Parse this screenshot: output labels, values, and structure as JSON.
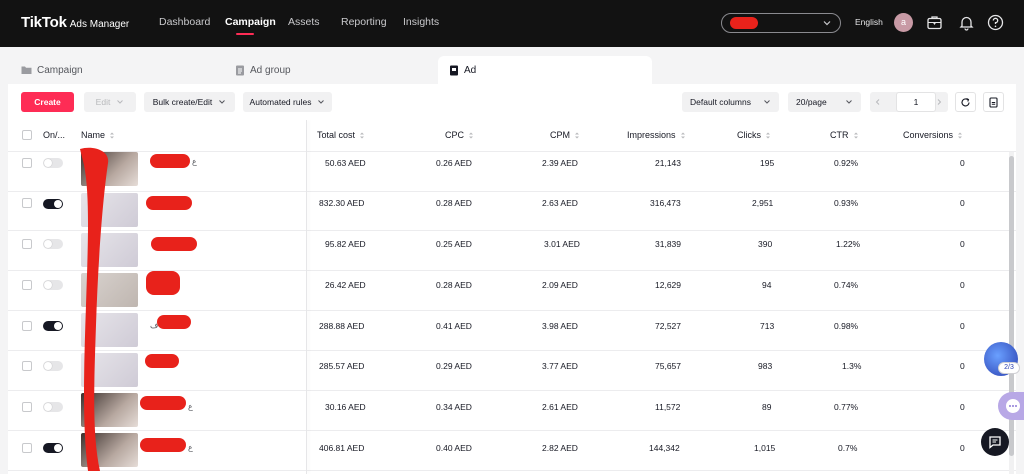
{
  "topbar": {
    "logo_main": "TikTok",
    "logo_sub": "Ads Manager",
    "nav": [
      {
        "label": "Dashboard",
        "active": false
      },
      {
        "label": "Campaign",
        "active": true
      },
      {
        "label": "Assets",
        "active": false
      },
      {
        "label": "Reporting",
        "active": false
      },
      {
        "label": "Insights",
        "active": false
      }
    ],
    "language": "English",
    "avatar_initial": "a",
    "icons": [
      "briefcase-icon",
      "bell-icon",
      "help-icon"
    ]
  },
  "level_tabs": [
    {
      "label": "Campaign",
      "icon": "folder-icon",
      "active": false
    },
    {
      "label": "Ad group",
      "icon": "document-icon",
      "active": false
    },
    {
      "label": "Ad",
      "icon": "ad-icon",
      "active": true
    }
  ],
  "toolbar": {
    "create_label": "Create",
    "edit_label": "Edit",
    "bulk_label": "Bulk create/Edit",
    "rules_label": "Automated rules",
    "columns_label": "Default columns",
    "page_size_label": "20/page",
    "page_number": "1"
  },
  "table": {
    "headers": {
      "onoff": "On/...",
      "name": "Name",
      "total_cost": "Total cost",
      "cpc": "CPC",
      "cpm": "CPM",
      "impressions": "Impressions",
      "clicks": "Clicks",
      "ctr": "CTR",
      "conversions": "Conversions"
    },
    "rows": [
      {
        "on": false,
        "name_suffix": "ع",
        "total_cost": "50.63 AED",
        "cpc": "0.26 AED",
        "cpm": "2.39 AED",
        "impressions": "21,143",
        "clicks": "195",
        "ctr": "0.92%",
        "conversions": "0"
      },
      {
        "on": true,
        "name_suffix": "",
        "total_cost": "832.30 AED",
        "cpc": "0.28 AED",
        "cpm": "2.63 AED",
        "impressions": "316,473",
        "clicks": "2,951",
        "ctr": "0.93%",
        "conversions": "0"
      },
      {
        "on": false,
        "name_suffix": "",
        "total_cost": "95.82 AED",
        "cpc": "0.25 AED",
        "cpm": "3.01 AED",
        "impressions": "31,839",
        "clicks": "390",
        "ctr": "1.22%",
        "conversions": "0"
      },
      {
        "on": false,
        "name_suffix": "",
        "total_cost": "26.42 AED",
        "cpc": "0.28 AED",
        "cpm": "2.09 AED",
        "impressions": "12,629",
        "clicks": "94",
        "ctr": "0.74%",
        "conversions": "0"
      },
      {
        "on": true,
        "name_suffix": "ف",
        "total_cost": "288.88 AED",
        "cpc": "0.41 AED",
        "cpm": "3.98 AED",
        "impressions": "72,527",
        "clicks": "713",
        "ctr": "0.98%",
        "conversions": "0"
      },
      {
        "on": false,
        "name_suffix": "",
        "total_cost": "285.57 AED",
        "cpc": "0.29 AED",
        "cpm": "3.77 AED",
        "impressions": "75,657",
        "clicks": "983",
        "ctr": "1.3%",
        "conversions": "0"
      },
      {
        "on": false,
        "name_suffix": "ع",
        "total_cost": "30.16 AED",
        "cpc": "0.34 AED",
        "cpm": "2.61 AED",
        "impressions": "11,572",
        "clicks": "89",
        "ctr": "0.77%",
        "conversions": "0"
      },
      {
        "on": true,
        "name_suffix": "ع",
        "total_cost": "406.81 AED",
        "cpc": "0.40 AED",
        "cpm": "2.82 AED",
        "impressions": "144,342",
        "clicks": "1,015",
        "ctr": "0.7%",
        "conversions": "0"
      }
    ]
  },
  "floating": {
    "assist_badge": "2/3"
  },
  "colors": {
    "brand": "#fe2c55",
    "topbar_bg": "#121212",
    "redaction": "#e8221b"
  }
}
